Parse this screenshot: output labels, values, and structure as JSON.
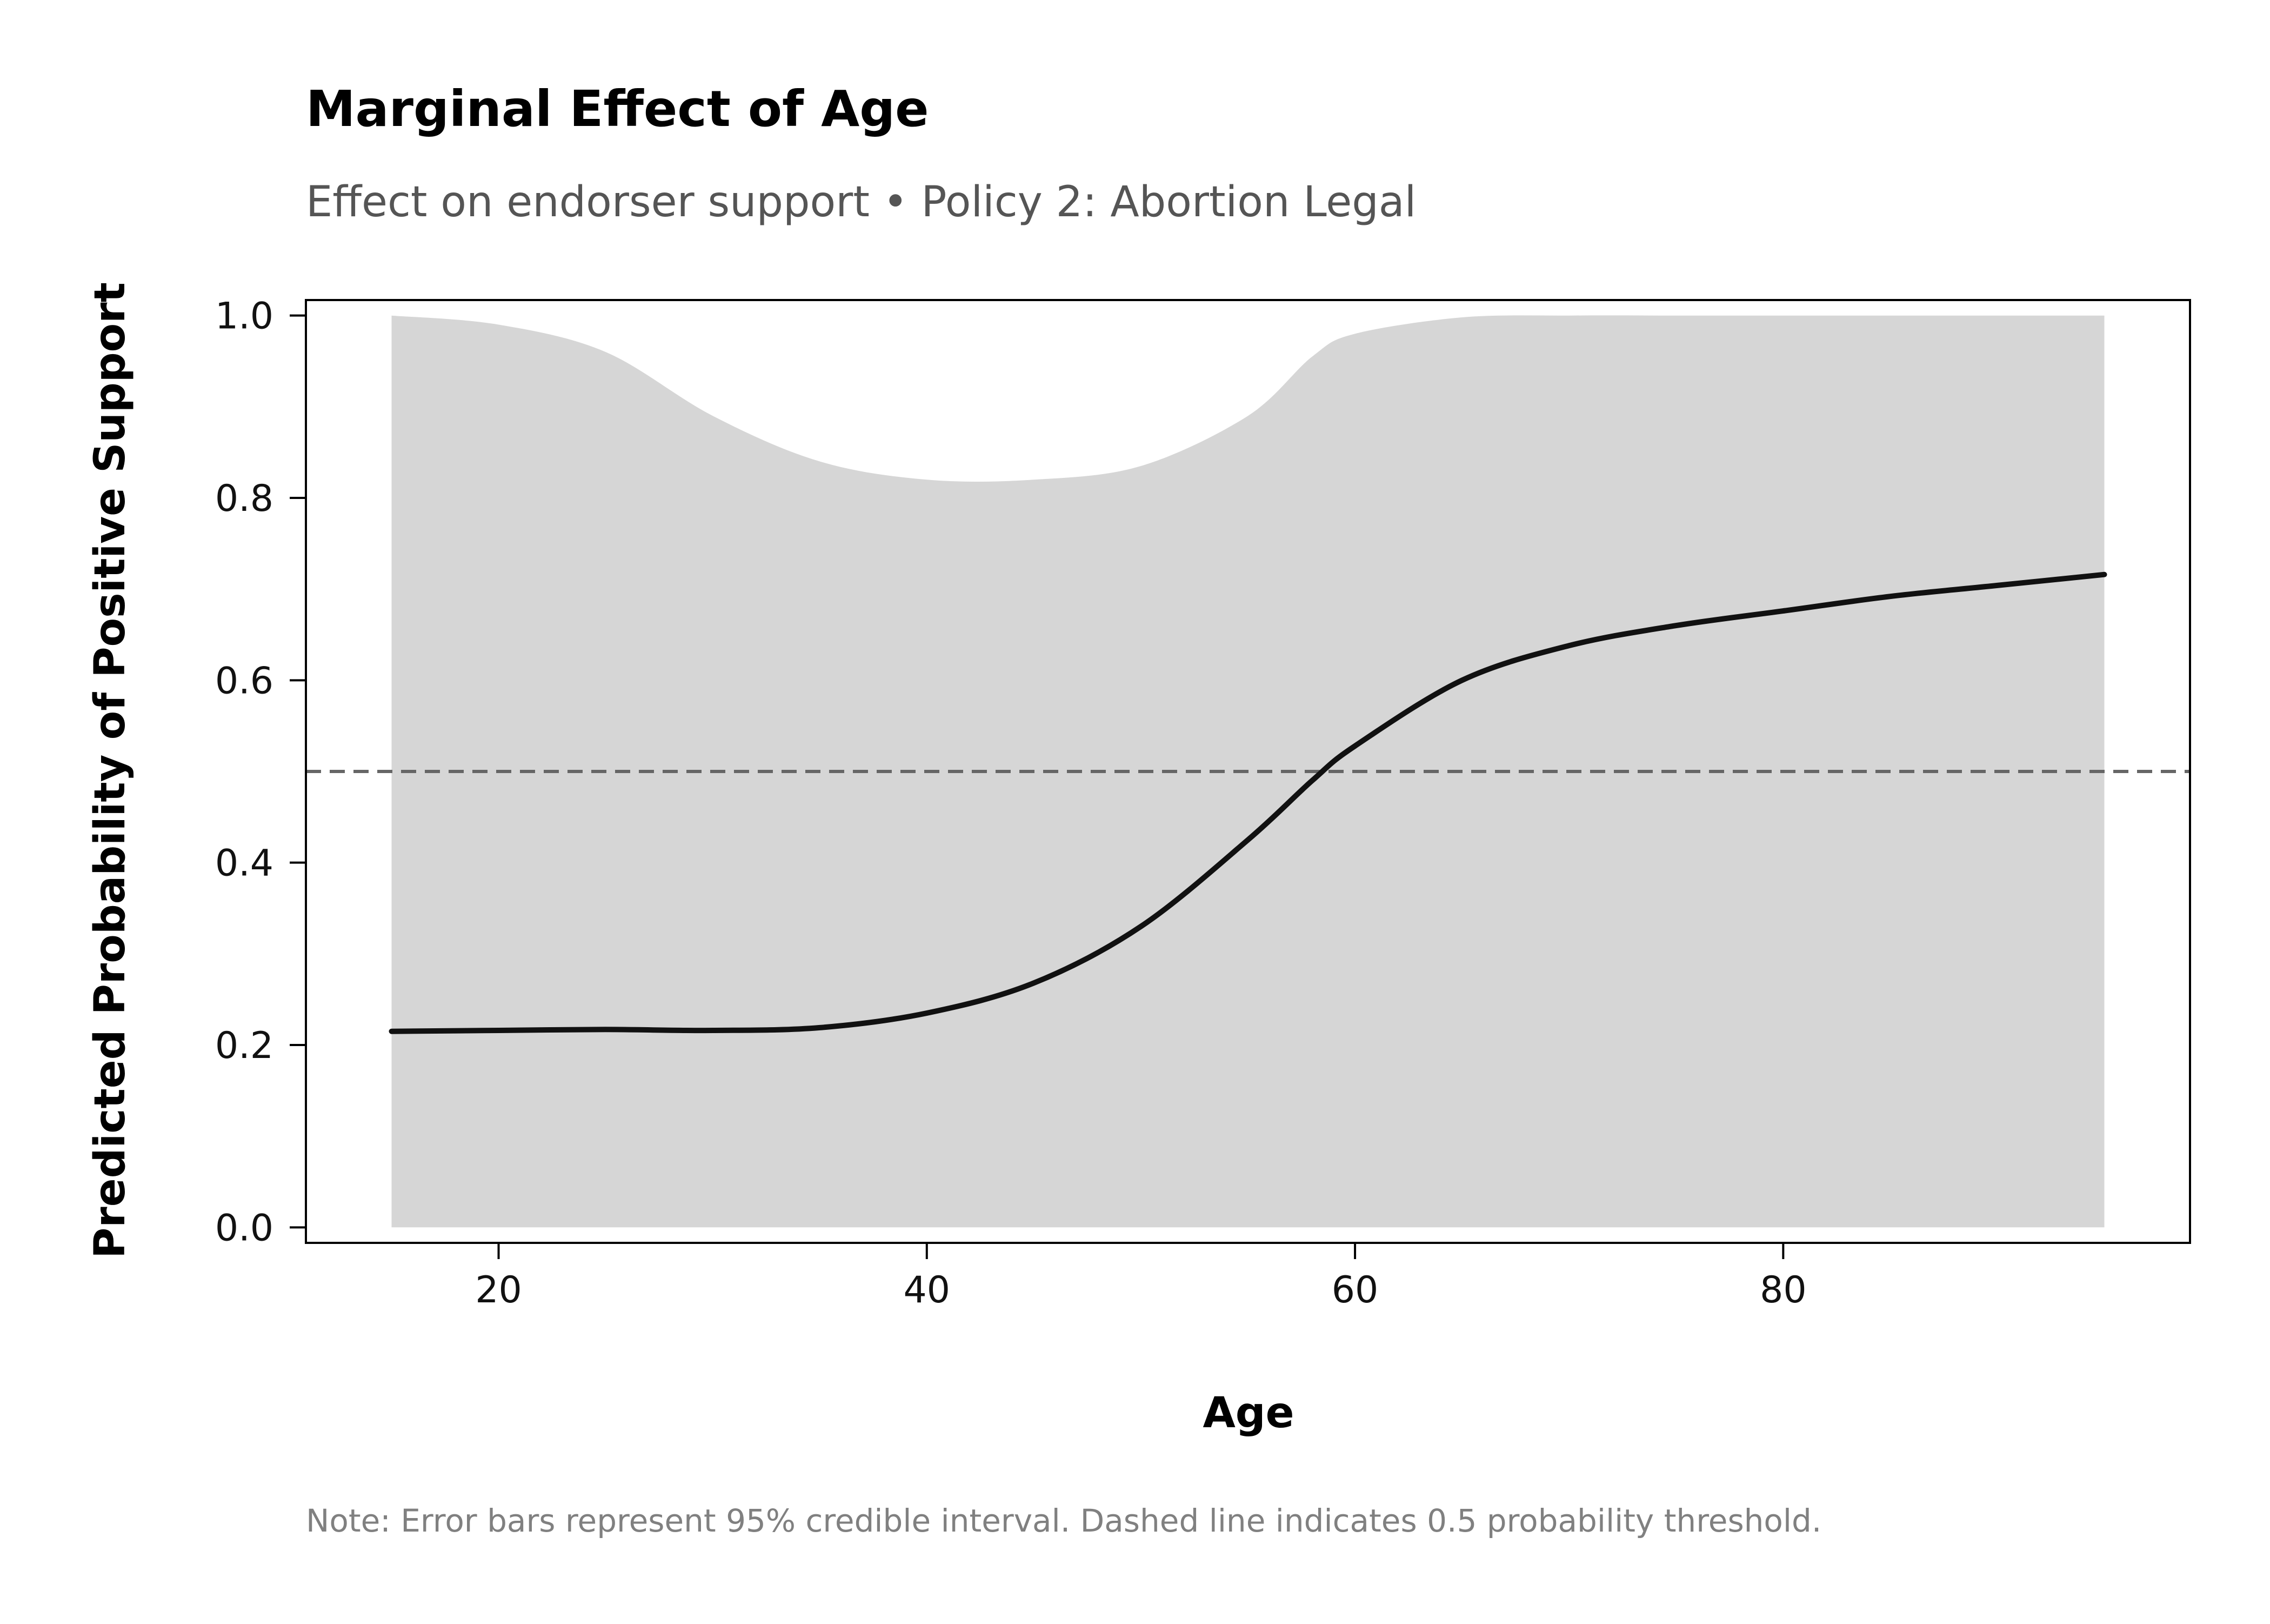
{
  "chart_data": {
    "type": "line",
    "title": "Marginal Effect of Age",
    "subtitle": "Effect on endorser support • Policy 2: Abortion Legal",
    "xlabel": "Age",
    "ylabel": "Predicted Probability of Positive Support",
    "note": "Note: Error bars represent 95% credible interval. Dashed line indicates 0.5 probability threshold.",
    "xlim": [
      11,
      99
    ],
    "ylim": [
      -0.017,
      1.017
    ],
    "xticks": [
      20,
      40,
      60,
      80
    ],
    "yticks": [
      0.0,
      0.2,
      0.4,
      0.6,
      0.8,
      1.0
    ],
    "ytick_labels": [
      "0.0",
      "0.2",
      "0.4",
      "0.6",
      "0.8",
      "1.0"
    ],
    "grid": false,
    "reference_line": {
      "y": 0.5,
      "style": "dashed"
    },
    "series": [
      {
        "x": [
          15,
          20,
          25,
          30,
          35,
          40,
          45,
          50,
          55,
          58,
          60,
          65,
          70,
          75,
          80,
          85,
          90,
          95
        ],
        "values": [
          0.215,
          0.216,
          0.217,
          0.216,
          0.219,
          0.235,
          0.268,
          0.33,
          0.425,
          0.49,
          0.528,
          0.6,
          0.638,
          0.66,
          0.676,
          0.692,
          0.704,
          0.716
        ],
        "lower": [
          0.0,
          0.0,
          0.0,
          0.0,
          0.0,
          0.0,
          0.0,
          0.0,
          0.0,
          0.0,
          0.0,
          0.0,
          0.0,
          0.0,
          0.0,
          0.0,
          0.0,
          0.0
        ],
        "upper": [
          1.0,
          0.99,
          0.96,
          0.89,
          0.84,
          0.82,
          0.82,
          0.835,
          0.89,
          0.955,
          0.98,
          0.998,
          1.0,
          1.0,
          1.0,
          1.0,
          1.0,
          1.0
        ]
      }
    ],
    "colors": {
      "line": "#111111",
      "band": "#d6d6d6",
      "reference": "#666666",
      "axis": "#000000"
    }
  }
}
